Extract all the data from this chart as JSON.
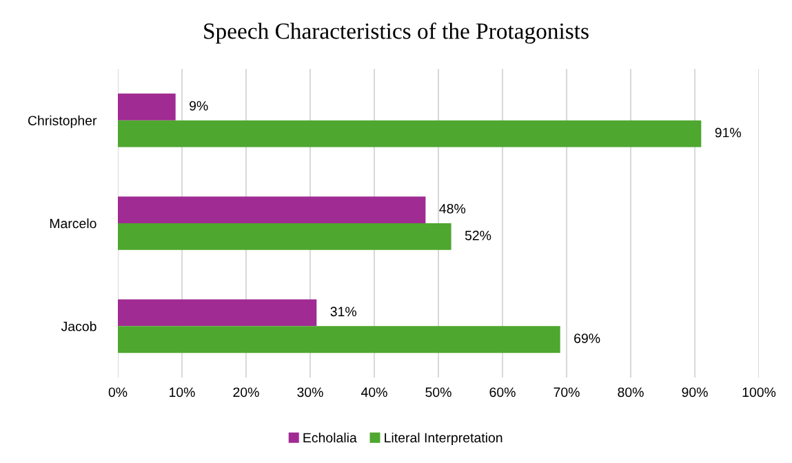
{
  "chart_data": {
    "type": "bar",
    "orientation": "horizontal",
    "title": "Speech Characteristics of the Protagonists",
    "categories": [
      "Christopher",
      "Marcelo",
      "Jacob"
    ],
    "series": [
      {
        "name": "Echolalia",
        "color": "#a02b93",
        "values": [
          9,
          48,
          31
        ],
        "value_labels": [
          "9%",
          "48%",
          "31%"
        ]
      },
      {
        "name": "Literal Interpretation",
        "color": "#4ea72e",
        "values": [
          91,
          52,
          69
        ],
        "value_labels": [
          "91%",
          "52%",
          "69%"
        ]
      }
    ],
    "xlim": [
      0,
      100
    ],
    "xticks": [
      {
        "value": 0,
        "label": "0%"
      },
      {
        "value": 10,
        "label": "10%"
      },
      {
        "value": 20,
        "label": "20%"
      },
      {
        "value": 30,
        "label": "30%"
      },
      {
        "value": 40,
        "label": "40%"
      },
      {
        "value": 50,
        "label": "50%"
      },
      {
        "value": 60,
        "label": "60%"
      },
      {
        "value": 70,
        "label": "70%"
      },
      {
        "value": 80,
        "label": "80%"
      },
      {
        "value": 90,
        "label": "90%"
      },
      {
        "value": 100,
        "label": "100%"
      }
    ],
    "grid": "x",
    "legend": "bottom"
  }
}
